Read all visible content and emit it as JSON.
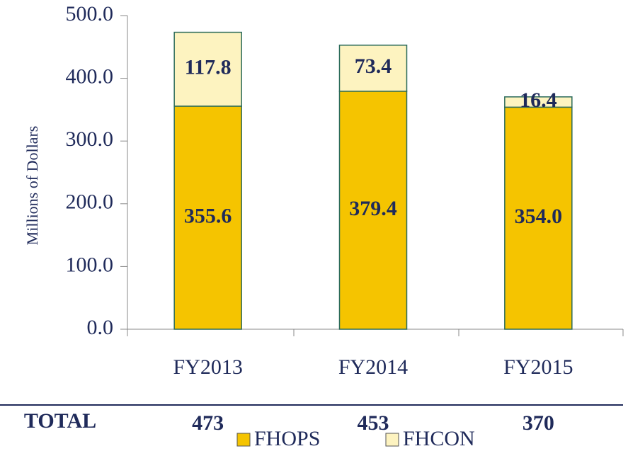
{
  "chart_data": {
    "type": "stacked-bar",
    "y_label": "Millions of Dollars",
    "categories": [
      "FY2013",
      "FY2014",
      "FY2015"
    ],
    "series": [
      {
        "name": "FHOPS",
        "color": "#f5c400",
        "values": [
          355.6,
          379.4,
          354.0
        ],
        "value_labels": [
          "355.6",
          "379.4",
          "354.0"
        ]
      },
      {
        "name": "FHCON",
        "color": "#fdf3c0",
        "values": [
          117.8,
          73.4,
          16.4
        ]
      }
    ],
    "ylim": [
      0,
      500
    ],
    "yticks": [
      {
        "value": 0,
        "label": "0.0"
      },
      {
        "value": 100,
        "label": "100.0"
      },
      {
        "value": 200,
        "label": "200.0"
      },
      {
        "value": 300,
        "label": "300.0"
      },
      {
        "value": 400,
        "label": "400.0"
      },
      {
        "value": 500,
        "label": "500.0"
      }
    ],
    "totals": {
      "label": "TOTAL",
      "values": [
        473,
        453,
        370
      ]
    },
    "legend": "bottom"
  }
}
